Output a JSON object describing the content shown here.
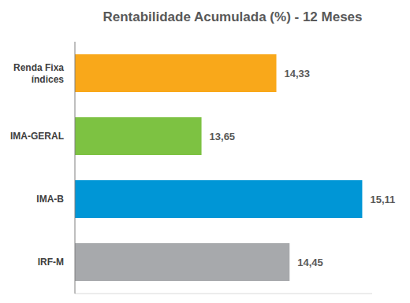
{
  "chart_data": {
    "type": "bar",
    "title": "Rentabilidade Acumulada (%) - 12 Meses",
    "orientation": "horizontal",
    "categories": [
      "Renda Fixa índices",
      "IMA-GERAL",
      "IMA-B",
      "IRF-M"
    ],
    "values": [
      14.33,
      13.65,
      15.11,
      14.45
    ],
    "value_labels": [
      "14,33",
      "13,65",
      "15,11",
      "14,45"
    ],
    "colors": [
      "#F9A81A",
      "#7DC242",
      "#0096D6",
      "#A7A9AC"
    ],
    "xlim": [
      12.5,
      15.2
    ],
    "data_labels": true,
    "tick_labels": "y",
    "grid": false
  }
}
